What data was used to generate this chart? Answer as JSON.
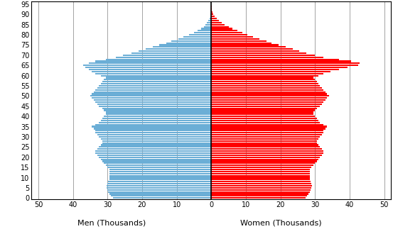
{
  "ages": [
    0,
    1,
    2,
    3,
    4,
    5,
    6,
    7,
    8,
    9,
    10,
    11,
    12,
    13,
    14,
    15,
    16,
    17,
    18,
    19,
    20,
    21,
    22,
    23,
    24,
    25,
    26,
    27,
    28,
    29,
    30,
    31,
    32,
    33,
    34,
    35,
    36,
    37,
    38,
    39,
    40,
    41,
    42,
    43,
    44,
    45,
    46,
    47,
    48,
    49,
    50,
    51,
    52,
    53,
    54,
    55,
    56,
    57,
    58,
    59,
    60,
    61,
    62,
    63,
    64,
    65,
    66,
    67,
    68,
    69,
    70,
    71,
    72,
    73,
    74,
    75,
    76,
    77,
    78,
    79,
    80,
    81,
    82,
    83,
    84,
    85,
    86,
    87,
    88,
    89,
    90,
    91,
    92,
    93,
    94,
    95
  ],
  "men": [
    28.5,
    29.0,
    29.5,
    29.8,
    30.0,
    30.2,
    30.2,
    30.0,
    29.8,
    29.5,
    29.5,
    29.5,
    29.5,
    29.5,
    29.5,
    30.0,
    30.5,
    31.0,
    31.5,
    32.0,
    32.5,
    33.0,
    33.5,
    33.5,
    33.0,
    32.5,
    32.0,
    31.5,
    31.5,
    32.0,
    32.5,
    33.0,
    33.5,
    33.5,
    34.0,
    34.5,
    33.5,
    32.5,
    32.0,
    31.5,
    31.0,
    30.5,
    30.5,
    31.0,
    31.5,
    32.5,
    33.0,
    33.5,
    34.0,
    34.5,
    35.0,
    34.5,
    34.0,
    33.5,
    33.0,
    32.5,
    32.0,
    31.5,
    31.0,
    30.5,
    32.0,
    33.5,
    34.5,
    35.5,
    36.5,
    37.0,
    35.5,
    33.5,
    30.5,
    27.5,
    25.5,
    23.0,
    21.0,
    19.0,
    17.0,
    15.0,
    13.0,
    11.5,
    9.5,
    8.0,
    6.5,
    5.0,
    4.0,
    3.0,
    2.2,
    1.6,
    1.2,
    0.8,
    0.5,
    0.3,
    0.2,
    0.1,
    0.07,
    0.04,
    0.02,
    0.01
  ],
  "women": [
    27.2,
    27.8,
    28.2,
    28.5,
    28.8,
    29.0,
    29.2,
    29.0,
    28.8,
    28.5,
    28.5,
    28.5,
    28.5,
    28.5,
    28.5,
    29.0,
    29.5,
    30.0,
    30.5,
    31.0,
    31.5,
    32.0,
    32.5,
    32.5,
    32.0,
    31.5,
    31.0,
    30.5,
    30.5,
    31.0,
    31.5,
    32.0,
    32.5,
    32.5,
    33.0,
    33.5,
    32.5,
    31.5,
    31.0,
    30.5,
    30.0,
    29.5,
    29.5,
    30.0,
    30.5,
    31.5,
    32.0,
    32.5,
    33.0,
    33.5,
    34.0,
    33.5,
    33.0,
    32.5,
    32.0,
    31.5,
    31.0,
    30.5,
    30.0,
    29.5,
    31.0,
    32.5,
    34.5,
    37.0,
    39.5,
    42.5,
    43.0,
    40.5,
    37.0,
    32.5,
    30.0,
    27.5,
    25.5,
    23.5,
    21.5,
    19.5,
    17.5,
    16.0,
    14.0,
    12.0,
    10.5,
    9.0,
    7.5,
    6.2,
    5.0,
    3.8,
    3.0,
    2.2,
    1.5,
    1.0,
    0.6,
    0.4,
    0.25,
    0.15,
    0.08,
    0.03
  ],
  "men_color": "#6baed6",
  "women_color": "#ff0000",
  "background_color": "#ffffff",
  "xlabel_men": "Men (Thousands)",
  "xlabel_women": "Women (Thousands)",
  "xlim": 52,
  "xtick_pos": [
    -50,
    -40,
    -30,
    -20,
    -10,
    0,
    10,
    20,
    30,
    40,
    50
  ],
  "ytick_vals": [
    0,
    5,
    10,
    15,
    20,
    25,
    30,
    35,
    40,
    45,
    50,
    55,
    60,
    65,
    70,
    75,
    80,
    85,
    90,
    95
  ],
  "bar_height": 0.75,
  "spine_color": "#000000",
  "grid_color": "#808080",
  "tick_fontsize": 7,
  "label_fontsize": 8
}
